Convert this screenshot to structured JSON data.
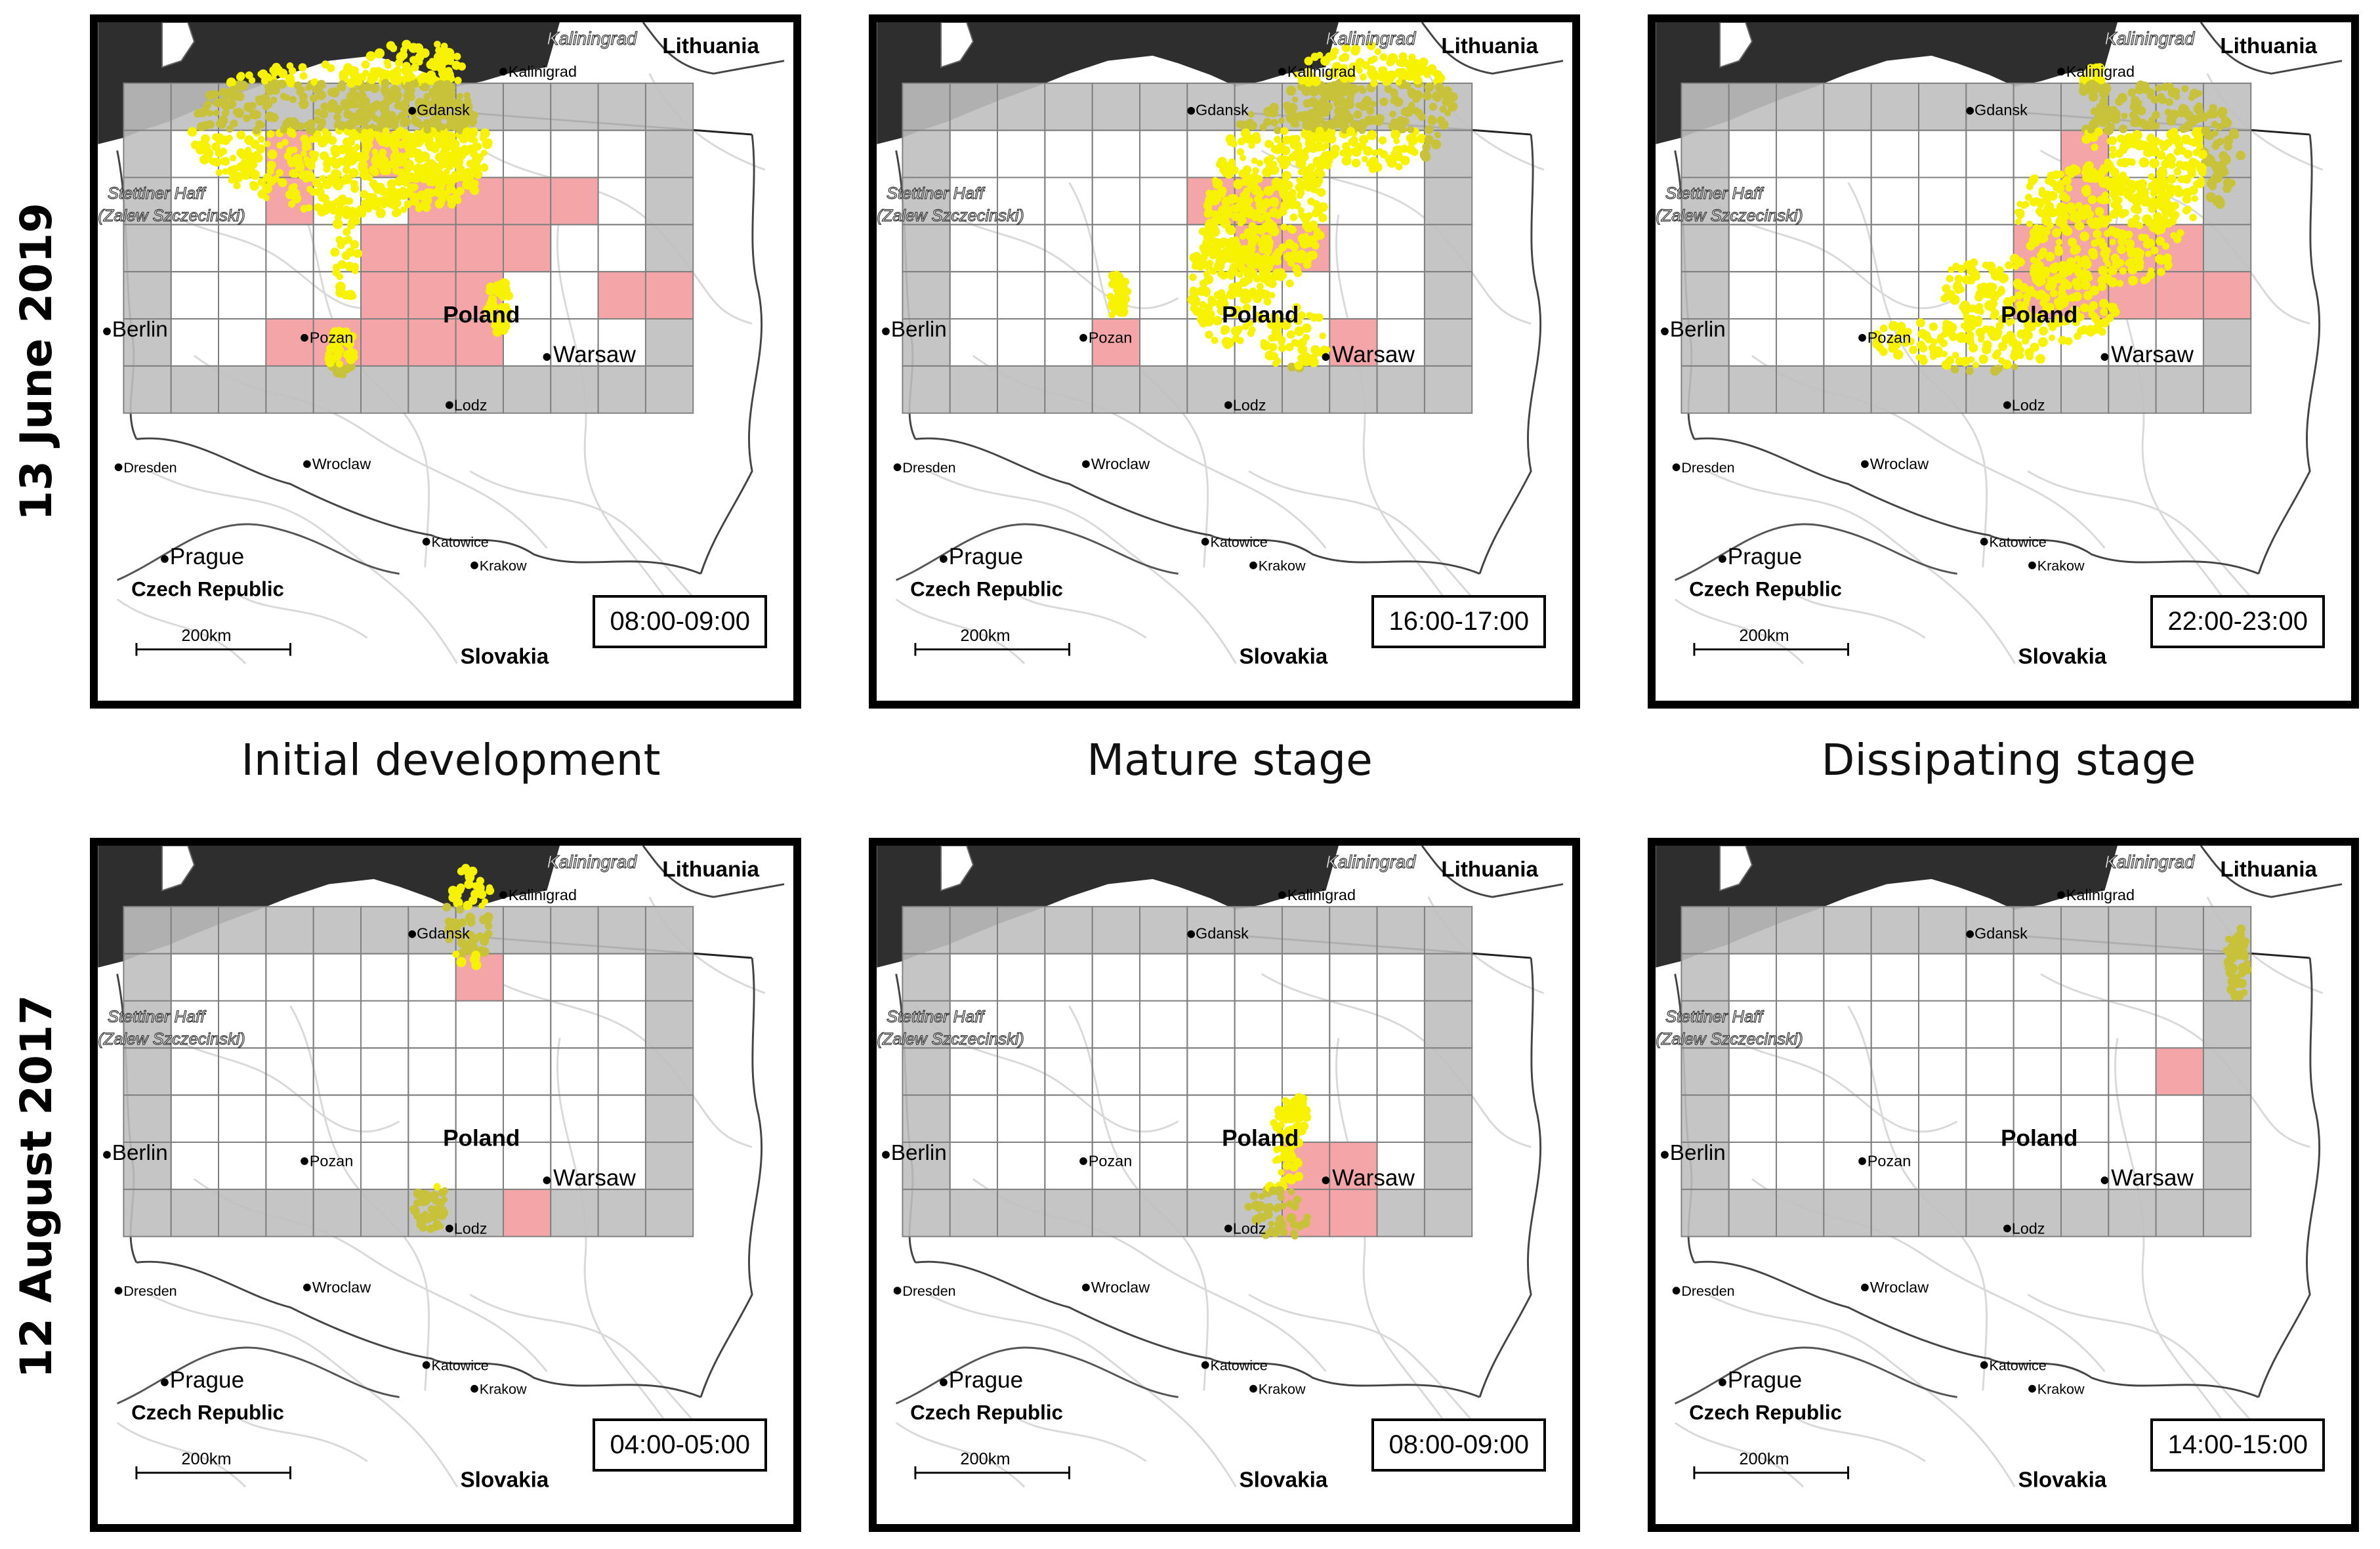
{
  "rows": [
    {
      "date_label": "13 June 2019",
      "times": [
        "08:00-09:00",
        "16:00-17:00",
        "22:00-23:00"
      ]
    },
    {
      "date_label": "12 August 2017",
      "times": [
        "04:00-05:00",
        "08:00-09:00",
        "14:00-15:00"
      ]
    }
  ],
  "stages": [
    "Initial development",
    "Mature stage",
    "Dissipating stage"
  ],
  "map_labels": {
    "lithuania": "Lithuania",
    "kaliningrad_region": "Kaliningrad",
    "kaliningrad_city": "Kalinigrad",
    "gdansk": "Gdansk",
    "stettiner_haff": "Stettiner Haff",
    "zalew": "(Zalew Szczecinski)",
    "berlin": "Berlin",
    "pozan": "Pozan",
    "poland": "Poland",
    "warsaw": "Warsaw",
    "lodz": "Lodz",
    "wroclaw": "Wroclaw",
    "dresden": "Dresden",
    "prague": "Prague",
    "katowice": "Katowice",
    "krakow": "Krakow",
    "czech_republic": "Czech Republic",
    "slovakia": "Slovakia",
    "scale": "200km"
  },
  "colors": {
    "sea": "#2e2e2e",
    "grid_border_cells": "#bfbfbf",
    "flagged_cells": "#f4a5a8",
    "lightning": "#f6f200",
    "lightning_in_border": "#c8c23a",
    "grid_lines": "#7f7f7f"
  },
  "grid": {
    "columns": 12,
    "rows": 7
  },
  "panels": [
    {
      "pink_cells": [
        [
          3,
          1
        ],
        [
          3,
          2
        ],
        [
          5,
          1
        ],
        [
          6,
          2
        ],
        [
          7,
          2
        ],
        [
          8,
          2
        ],
        [
          9,
          2
        ],
        [
          5,
          3
        ],
        [
          6,
          3
        ],
        [
          7,
          3
        ],
        [
          8,
          3
        ],
        [
          5,
          4
        ],
        [
          6,
          4
        ],
        [
          7,
          4
        ],
        [
          10,
          4
        ],
        [
          11,
          4
        ],
        [
          3,
          5
        ],
        [
          4,
          5
        ],
        [
          5,
          5
        ],
        [
          6,
          5
        ],
        [
          7,
          5
        ]
      ],
      "strikes": [
        [
          4.6,
          1.2,
          3.2,
          1.6,
          0.1
        ],
        [
          6.0,
          0.7,
          1.4,
          1.7,
          0.25
        ],
        [
          6.9,
          1.6,
          0.55,
          1.05,
          -0.15
        ],
        [
          4.7,
          3.6,
          0.25,
          1.3,
          0
        ],
        [
          7.9,
          4.7,
          0.25,
          0.6,
          0
        ],
        [
          6.7,
          -0.2,
          0.25,
          0.6,
          0
        ],
        [
          4.6,
          5.7,
          0.3,
          0.5,
          0
        ]
      ]
    },
    {
      "pink_cells": [
        [
          6,
          2
        ],
        [
          7,
          2
        ],
        [
          7,
          3
        ],
        [
          8,
          3
        ],
        [
          4,
          5
        ],
        [
          9,
          5
        ]
      ],
      "strikes": [
        [
          8.9,
          0.9,
          0.45,
          1.5,
          0.35
        ],
        [
          7.7,
          2.5,
          1.3,
          2.1,
          0.2
        ],
        [
          9.9,
          0.5,
          1.8,
          1.3,
          0.18
        ],
        [
          7.0,
          4.0,
          0.9,
          1.6,
          0.15
        ],
        [
          8.3,
          5.4,
          0.7,
          0.7,
          0
        ],
        [
          4.5,
          4.5,
          0.25,
          0.5,
          0
        ]
      ]
    },
    {
      "pink_cells": [
        [
          8,
          1
        ],
        [
          8,
          2
        ],
        [
          7,
          3
        ],
        [
          8,
          3
        ],
        [
          9,
          3
        ],
        [
          10,
          3
        ],
        [
          7,
          4
        ],
        [
          8,
          4
        ],
        [
          9,
          4
        ],
        [
          10,
          4
        ],
        [
          11,
          4
        ]
      ],
      "strikes": [
        [
          10.1,
          1.5,
          1.7,
          1.5,
          0.25
        ],
        [
          8.8,
          3.0,
          1.8,
          1.2,
          0.3
        ],
        [
          7.3,
          4.6,
          1.9,
          0.9,
          0.15
        ],
        [
          5.8,
          5.6,
          1.8,
          0.5,
          0.1
        ],
        [
          8.7,
          0.0,
          0.3,
          0.35,
          0
        ]
      ]
    },
    {
      "pink_cells": [
        [
          7,
          1
        ],
        [
          8,
          6
        ]
      ],
      "strikes": [
        [
          7.3,
          0.2,
          0.5,
          1.1,
          0
        ],
        [
          6.5,
          6.4,
          0.4,
          0.5,
          0
        ]
      ]
    },
    {
      "pink_cells": [
        [
          8,
          5
        ],
        [
          9,
          5
        ],
        [
          8,
          6
        ],
        [
          9,
          6
        ]
      ],
      "strikes": [
        [
          8.1,
          5.2,
          0.35,
          1.1,
          0
        ],
        [
          7.9,
          6.5,
          0.65,
          0.6,
          0
        ],
        [
          8.3,
          4.4,
          0.25,
          0.4,
          0
        ]
      ]
    },
    {
      "pink_cells": [
        [
          10,
          3
        ]
      ],
      "strikes": [
        [
          11.7,
          1.2,
          0.25,
          0.8,
          0
        ]
      ]
    }
  ]
}
